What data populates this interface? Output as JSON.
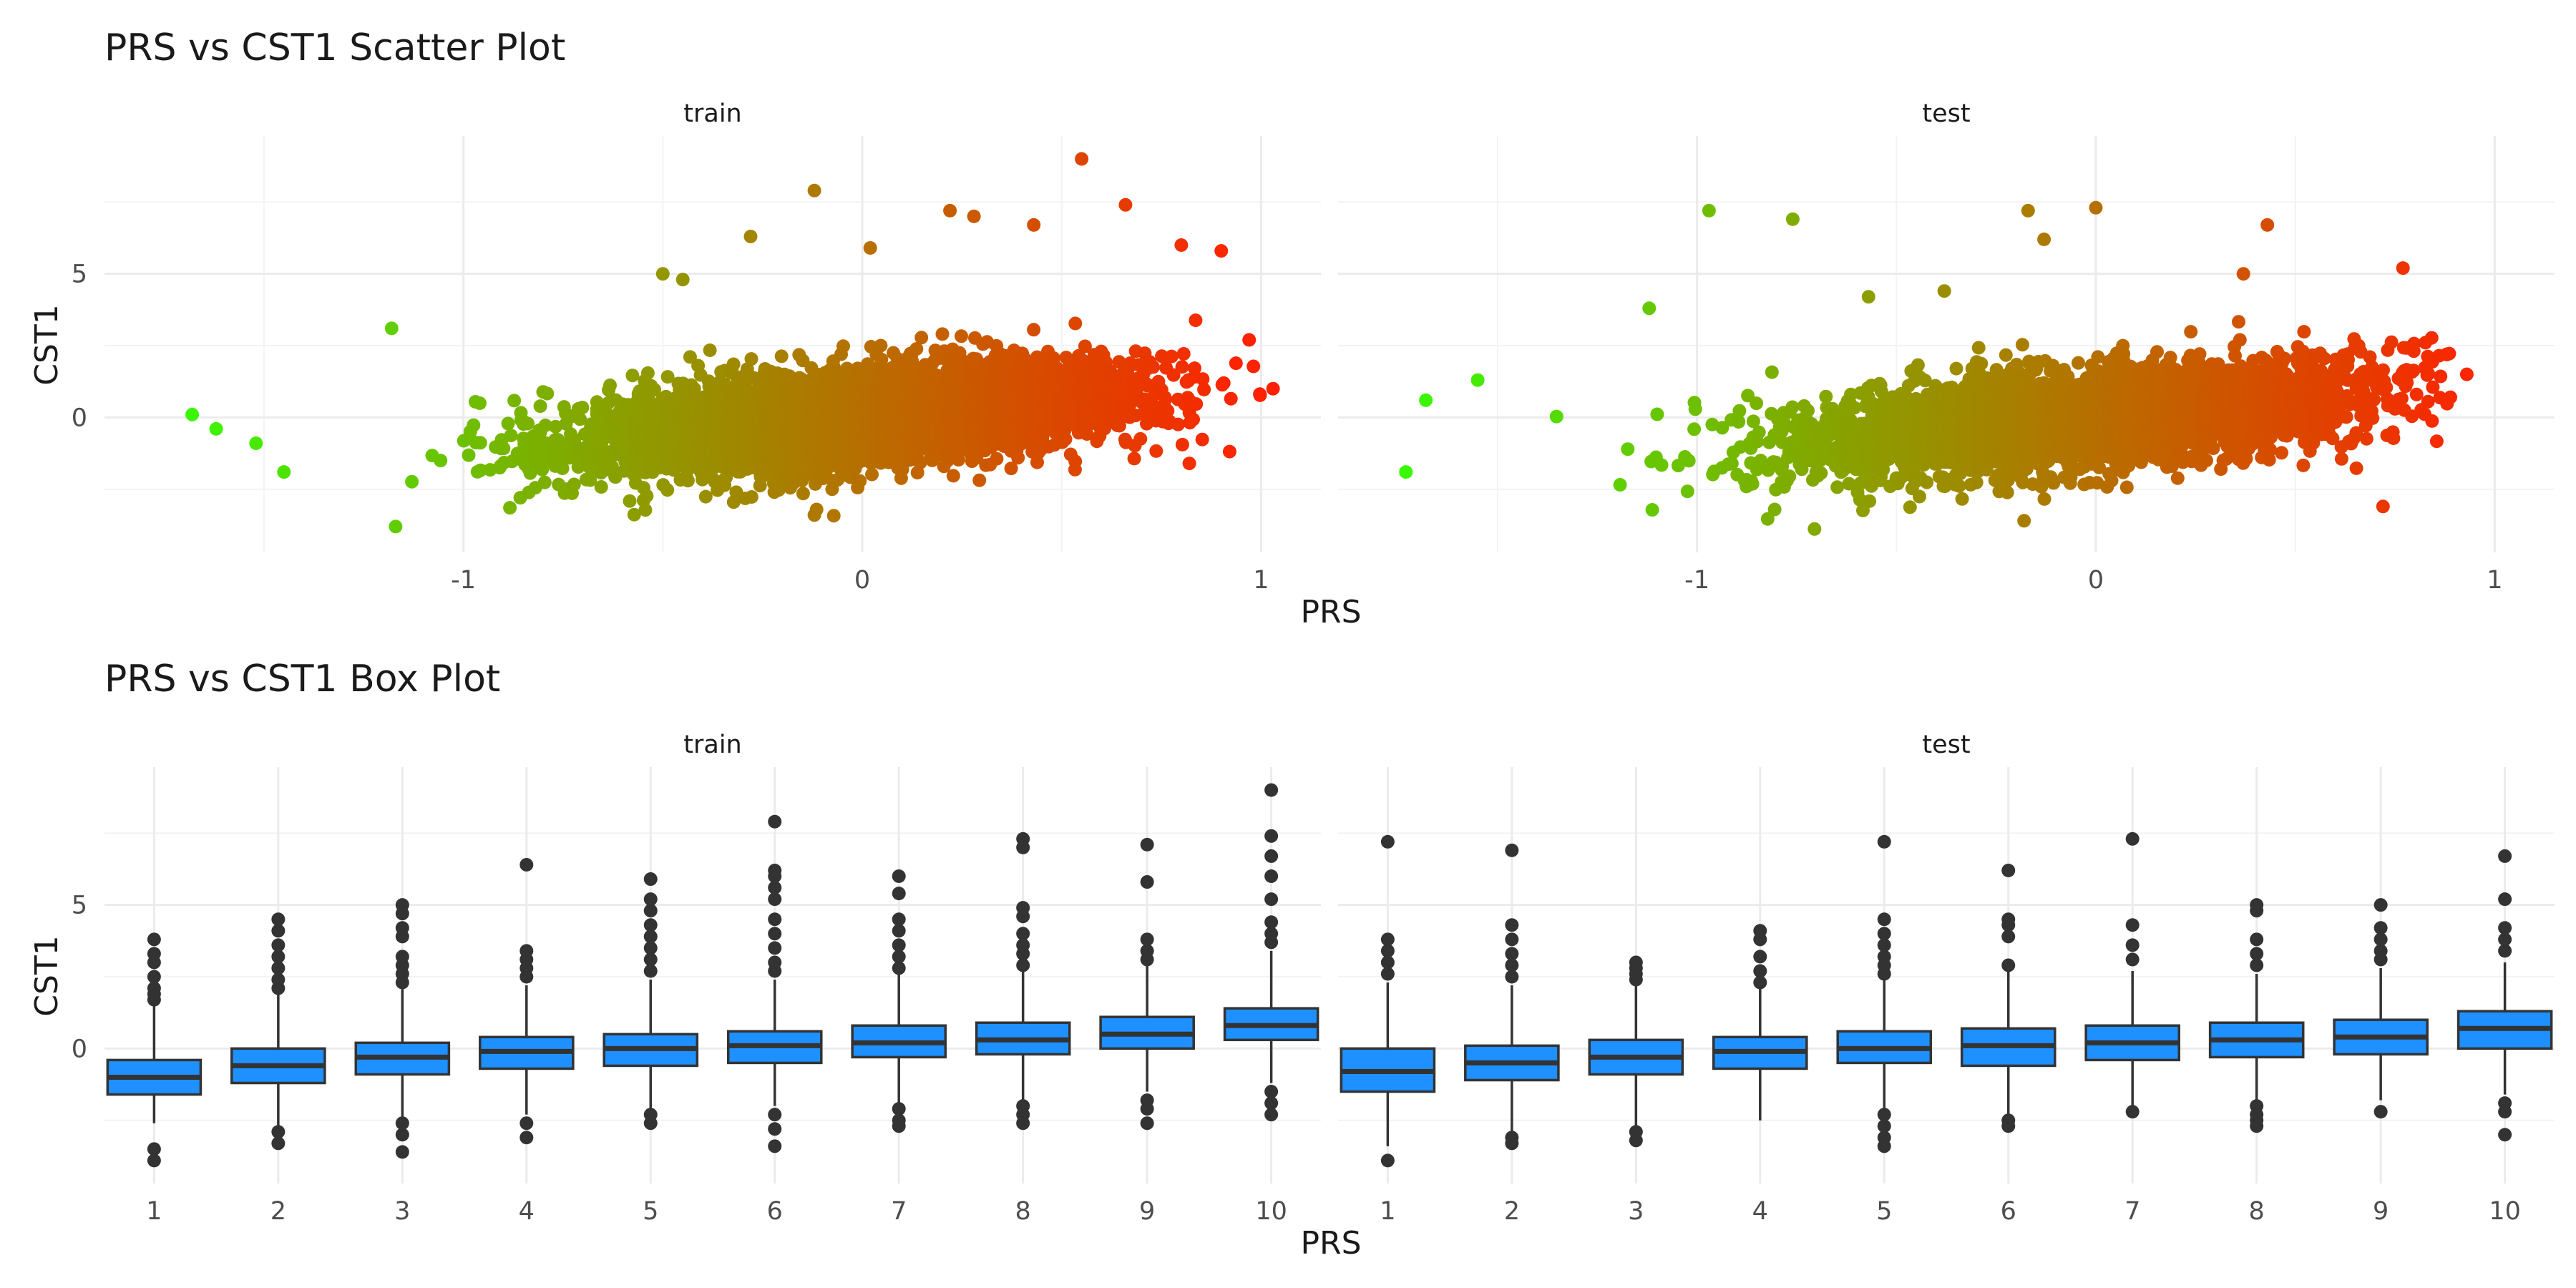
{
  "chart_data": [
    {
      "type": "scatter",
      "title": "PRS vs CST1 Scatter Plot",
      "xlabel": "PRS",
      "ylabel": "CST1",
      "xlim": [
        -1.9,
        1.15
      ],
      "ylim": [
        -4.7,
        9.8
      ],
      "x_ticks": [
        -1,
        0,
        1
      ],
      "y_ticks": [
        0,
        5
      ],
      "grid": true,
      "color_scale": {
        "low": "#33ff00",
        "high": "#ff2000",
        "range": [
          -1.8,
          1.0
        ]
      },
      "panels": [
        {
          "name": "train",
          "x_min": -1.8,
          "x_max": 1.05,
          "n": 4200,
          "slope": 1.3,
          "outliers": [
            {
              "x": -1.68,
              "y": 0.1
            },
            {
              "x": -1.62,
              "y": -0.4
            },
            {
              "x": -1.52,
              "y": -0.9
            },
            {
              "x": -1.45,
              "y": -1.9
            },
            {
              "x": -1.18,
              "y": 3.1
            },
            {
              "x": -1.17,
              "y": -3.8
            },
            {
              "x": -0.5,
              "y": 5.0
            },
            {
              "x": -0.45,
              "y": 4.8
            },
            {
              "x": -0.28,
              "y": 6.3
            },
            {
              "x": -0.12,
              "y": 7.9
            },
            {
              "x": -0.12,
              "y": -3.4
            },
            {
              "x": 0.02,
              "y": 5.9
            },
            {
              "x": 0.22,
              "y": 7.2
            },
            {
              "x": 0.28,
              "y": 7.0
            },
            {
              "x": 0.43,
              "y": 6.7
            },
            {
              "x": 0.55,
              "y": 9.0
            },
            {
              "x": 0.66,
              "y": 7.4
            },
            {
              "x": 0.8,
              "y": 6.0
            },
            {
              "x": 0.9,
              "y": 5.8
            },
            {
              "x": 1.03,
              "y": 1.0
            },
            {
              "x": 0.97,
              "y": 2.7
            },
            {
              "x": 0.82,
              "y": -1.6
            }
          ]
        },
        {
          "name": "test",
          "x_min": -1.8,
          "x_max": 0.95,
          "n": 3800,
          "slope": 1.2,
          "outliers": [
            {
              "x": -1.73,
              "y": -1.9
            },
            {
              "x": -1.68,
              "y": 0.6
            },
            {
              "x": -1.55,
              "y": 1.3
            },
            {
              "x": -1.12,
              "y": 3.8
            },
            {
              "x": -0.97,
              "y": 7.2
            },
            {
              "x": -0.76,
              "y": 6.9
            },
            {
              "x": -0.57,
              "y": 4.2
            },
            {
              "x": -0.38,
              "y": 4.4
            },
            {
              "x": -0.17,
              "y": 7.2
            },
            {
              "x": -0.13,
              "y": 6.2
            },
            {
              "x": -0.18,
              "y": -3.6
            },
            {
              "x": 0.0,
              "y": 7.3
            },
            {
              "x": 0.37,
              "y": 5.0
            },
            {
              "x": 0.43,
              "y": 6.7
            },
            {
              "x": 0.72,
              "y": -3.1
            },
            {
              "x": 0.77,
              "y": 5.2
            },
            {
              "x": 0.93,
              "y": 1.5
            },
            {
              "x": 0.88,
              "y": 2.2
            }
          ]
        }
      ]
    },
    {
      "type": "box",
      "title": "PRS vs CST1 Box Plot",
      "xlabel": "PRS",
      "ylabel": "CST1",
      "ylim": [
        -4.7,
        9.8
      ],
      "y_ticks": [
        0,
        5
      ],
      "grid": true,
      "box_color": "#1e90ff",
      "categories": [
        "1",
        "2",
        "3",
        "4",
        "5",
        "6",
        "7",
        "8",
        "9",
        "10"
      ],
      "panels": [
        {
          "name": "train",
          "boxes": [
            {
              "lower": -2.6,
              "q1": -1.6,
              "median": -1.0,
              "q3": -0.4,
              "upper": 1.5,
              "outliers": [
                1.7,
                1.9,
                2.1,
                2.5,
                3.0,
                3.3,
                3.8,
                -3.5,
                -3.9
              ]
            },
            {
              "lower": -2.7,
              "q1": -1.2,
              "median": -0.6,
              "q3": 0.0,
              "upper": 1.9,
              "outliers": [
                2.1,
                2.4,
                2.8,
                3.2,
                3.6,
                4.1,
                4.5,
                -2.9,
                -3.3
              ]
            },
            {
              "lower": -2.4,
              "q1": -0.9,
              "median": -0.3,
              "q3": 0.2,
              "upper": 2.1,
              "outliers": [
                2.3,
                2.6,
                2.9,
                3.2,
                3.9,
                4.2,
                4.7,
                5.0,
                -2.6,
                -3.0,
                -3.6
              ]
            },
            {
              "lower": -2.3,
              "q1": -0.7,
              "median": -0.1,
              "q3": 0.4,
              "upper": 2.2,
              "outliers": [
                2.5,
                2.8,
                3.1,
                3.4,
                6.4,
                -2.6,
                -3.1
              ]
            },
            {
              "lower": -2.1,
              "q1": -0.6,
              "median": 0.0,
              "q3": 0.5,
              "upper": 2.4,
              "outliers": [
                2.7,
                3.1,
                3.5,
                3.9,
                4.3,
                4.8,
                5.2,
                5.9,
                -2.3,
                -2.6
              ]
            },
            {
              "lower": -2.0,
              "q1": -0.5,
              "median": 0.1,
              "q3": 0.6,
              "upper": 2.4,
              "outliers": [
                2.7,
                3.0,
                3.5,
                4.0,
                4.5,
                5.2,
                5.6,
                6.0,
                6.2,
                7.9,
                -2.3,
                -2.8,
                -3.4
              ]
            },
            {
              "lower": -1.9,
              "q1": -0.3,
              "median": 0.2,
              "q3": 0.8,
              "upper": 2.6,
              "outliers": [
                2.8,
                3.2,
                3.6,
                4.1,
                4.5,
                5.4,
                6.0,
                -2.1,
                -2.5,
                -2.7
              ]
            },
            {
              "lower": -1.8,
              "q1": -0.2,
              "median": 0.3,
              "q3": 0.9,
              "upper": 2.7,
              "outliers": [
                2.9,
                3.3,
                3.6,
                4.0,
                4.6,
                4.9,
                7.0,
                7.3,
                -2.0,
                -2.3,
                -2.6
              ]
            },
            {
              "lower": -1.5,
              "q1": 0.0,
              "median": 0.5,
              "q3": 1.1,
              "upper": 2.9,
              "outliers": [
                3.1,
                3.4,
                3.8,
                5.8,
                7.1,
                -1.8,
                -2.1,
                -2.6
              ]
            },
            {
              "lower": -1.2,
              "q1": 0.3,
              "median": 0.8,
              "q3": 1.4,
              "upper": 3.4,
              "outliers": [
                3.7,
                4.0,
                4.4,
                5.2,
                6.0,
                6.7,
                7.4,
                9.0,
                -1.5,
                -1.9,
                -2.3
              ]
            }
          ]
        },
        {
          "name": "test",
          "boxes": [
            {
              "lower": -3.4,
              "q1": -1.5,
              "median": -0.8,
              "q3": 0.0,
              "upper": 2.3,
              "outliers": [
                2.6,
                3.0,
                3.4,
                3.8,
                7.2,
                -3.9
              ]
            },
            {
              "lower": -2.9,
              "q1": -1.1,
              "median": -0.5,
              "q3": 0.1,
              "upper": 2.2,
              "outliers": [
                2.5,
                2.9,
                3.3,
                3.8,
                4.3,
                6.9,
                -3.1,
                -3.3
              ]
            },
            {
              "lower": -2.7,
              "q1": -0.9,
              "median": -0.3,
              "q3": 0.3,
              "upper": 2.2,
              "outliers": [
                2.4,
                2.6,
                2.8,
                3.0,
                -2.9,
                -3.2
              ]
            },
            {
              "lower": -2.5,
              "q1": -0.7,
              "median": -0.1,
              "q3": 0.4,
              "upper": 2.1,
              "outliers": [
                2.3,
                2.7,
                3.2,
                3.8,
                4.1
              ]
            },
            {
              "lower": -2.1,
              "q1": -0.5,
              "median": 0.0,
              "q3": 0.6,
              "upper": 2.4,
              "outliers": [
                2.6,
                2.9,
                3.2,
                3.6,
                4.0,
                4.5,
                7.2,
                -2.3,
                -2.7,
                -3.1,
                -3.4
              ]
            },
            {
              "lower": -2.3,
              "q1": -0.6,
              "median": 0.1,
              "q3": 0.7,
              "upper": 2.7,
              "outliers": [
                2.9,
                3.9,
                4.3,
                4.5,
                6.2,
                -2.5,
                -2.7
              ]
            },
            {
              "lower": -2.0,
              "q1": -0.4,
              "median": 0.2,
              "q3": 0.8,
              "upper": 2.7,
              "outliers": [
                3.1,
                3.6,
                4.3,
                7.3,
                -2.2
              ]
            },
            {
              "lower": -1.8,
              "q1": -0.3,
              "median": 0.3,
              "q3": 0.9,
              "upper": 2.6,
              "outliers": [
                2.9,
                3.3,
                3.8,
                4.8,
                5.0,
                -2.0,
                -2.3,
                -2.5,
                -2.7
              ]
            },
            {
              "lower": -1.8,
              "q1": -0.2,
              "median": 0.4,
              "q3": 1.0,
              "upper": 2.8,
              "outliers": [
                3.1,
                3.4,
                3.8,
                4.2,
                5.0,
                -2.2
              ]
            },
            {
              "lower": -1.6,
              "q1": 0.0,
              "median": 0.7,
              "q3": 1.3,
              "upper": 3.0,
              "outliers": [
                3.4,
                3.8,
                4.2,
                5.2,
                6.7,
                -1.9,
                -2.2,
                -3.0
              ]
            }
          ]
        }
      ]
    }
  ]
}
